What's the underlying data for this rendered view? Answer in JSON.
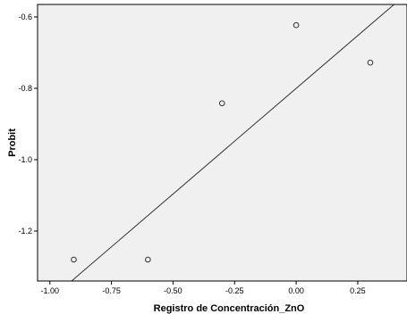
{
  "chart_data": {
    "type": "scatter",
    "title": "",
    "xlabel": "Registro de Concentración_ZnO",
    "ylabel": "Probit",
    "xlim": [
      -1.05,
      0.45
    ],
    "ylim": [
      -1.34,
      -0.565
    ],
    "x_ticks": [
      -1.0,
      -0.75,
      -0.5,
      -0.25,
      0.0,
      0.25
    ],
    "x_tick_labels": [
      "-1.00",
      "-0.75",
      "-0.50",
      "-0.25",
      "0.00",
      "0.25"
    ],
    "y_ticks": [
      -0.6,
      -0.8,
      -1.0,
      -1.2
    ],
    "y_tick_labels": [
      "-0.6",
      "-0.8",
      "-1.0",
      "-1.2"
    ],
    "grid": false,
    "legend": "none",
    "series": [
      {
        "kind": "points",
        "marker": "open-circle",
        "x": [
          -0.903,
          -0.602,
          -0.301,
          0.0,
          0.301
        ],
        "y": [
          -1.28,
          -1.28,
          -0.842,
          -0.623,
          -0.728
        ]
      },
      {
        "kind": "fit-line",
        "x": [
          -1.05,
          0.45
        ],
        "y": [
          -1.4218,
          -0.5338
        ]
      }
    ],
    "colors": {
      "plot_background": "#f0f0f0",
      "page_background": "#ffffff",
      "frame": "#000000",
      "line": "#333333",
      "marker": "#333333"
    }
  }
}
